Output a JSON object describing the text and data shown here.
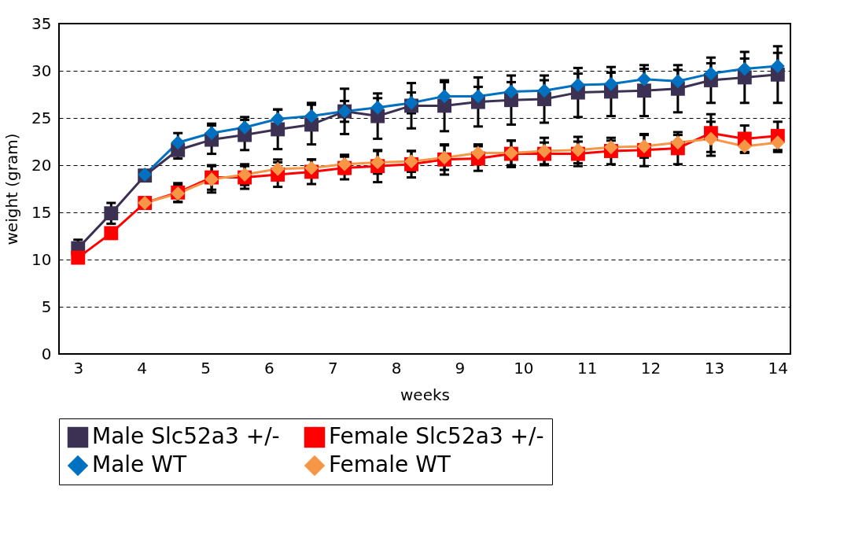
{
  "chart_data": {
    "type": "line",
    "xlabel": "weeks",
    "ylabel": "weight (gram)",
    "x": [
      3,
      3.52,
      4.05,
      4.57,
      5.1,
      5.62,
      6.14,
      6.67,
      7.19,
      7.71,
      8.24,
      8.76,
      9.29,
      9.81,
      10.33,
      10.86,
      11.38,
      11.9,
      12.43,
      12.95,
      13.48,
      14
    ],
    "xlim": [
      2.7,
      14.2
    ],
    "xticks": [
      3,
      4,
      5,
      6,
      7,
      8,
      9,
      10,
      11,
      12,
      13,
      14
    ],
    "ylim": [
      0,
      35
    ],
    "yticks": [
      0,
      5,
      10,
      15,
      20,
      25,
      30,
      35
    ],
    "grid": "y",
    "legend": "bottom",
    "line_style": "solid",
    "series": [
      {
        "name": "Male Slc52a3 +/-",
        "color": "#3c3152",
        "marker": "square",
        "values": [
          11.2,
          14.9,
          18.9,
          21.6,
          22.7,
          23.2,
          23.8,
          24.3,
          25.7,
          25.2,
          26.3,
          26.3,
          26.7,
          26.9,
          27.0,
          27.7,
          27.8,
          27.9,
          28.1,
          29.0,
          29.3,
          29.6
        ],
        "errors": [
          0.9,
          1.1,
          null,
          0.9,
          1.5,
          1.6,
          2.1,
          2.1,
          2.4,
          2.4,
          2.4,
          2.7,
          2.6,
          2.6,
          2.5,
          2.6,
          2.6,
          2.7,
          2.5,
          2.4,
          2.7,
          3.0
        ]
      },
      {
        "name": "Female Slc52a3 +/-",
        "color": "#ff0000",
        "marker": "square",
        "values": [
          10.2,
          12.8,
          16.0,
          17.1,
          18.7,
          18.7,
          19.0,
          19.3,
          19.7,
          19.9,
          20.1,
          20.6,
          20.7,
          21.2,
          21.2,
          21.2,
          21.5,
          21.6,
          21.8,
          23.4,
          22.8,
          23.1
        ],
        "errors": [
          null,
          null,
          null,
          1.0,
          1.3,
          1.2,
          1.3,
          1.3,
          1.2,
          1.7,
          1.4,
          1.6,
          1.3,
          1.4,
          1.2,
          1.3,
          1.4,
          1.7,
          1.7,
          2.0,
          1.4,
          1.5
        ]
      },
      {
        "name": "Male WT",
        "color": "#0070c0",
        "marker": "diamond",
        "values": [
          null,
          null,
          19.0,
          22.4,
          23.4,
          24.0,
          24.9,
          25.2,
          25.7,
          26.1,
          26.6,
          27.3,
          27.3,
          27.8,
          27.9,
          28.5,
          28.6,
          29.1,
          28.9,
          29.7,
          30.2,
          30.5
        ],
        "errors": [
          null,
          null,
          null,
          1.0,
          1.0,
          1.1,
          1.0,
          1.4,
          1.1,
          1.0,
          1.1,
          1.5,
          1.0,
          1.0,
          1.1,
          1.2,
          1.2,
          1.1,
          1.2,
          1.1,
          1.1,
          1.4
        ]
      },
      {
        "name": "Female WT",
        "color": "#f79646",
        "marker": "diamond",
        "values": [
          null,
          null,
          16.0,
          17.0,
          18.5,
          19.0,
          19.6,
          19.7,
          20.1,
          20.3,
          20.4,
          20.8,
          21.3,
          21.3,
          21.5,
          21.6,
          21.9,
          22.0,
          22.4,
          22.8,
          22.0,
          22.4
        ],
        "errors": [
          null,
          null,
          null,
          0.9,
          1.4,
          1.1,
          1.0,
          0.9,
          1.0,
          1.2,
          1.1,
          1.3,
          0.9,
          1.3,
          1.4,
          1.4,
          0.7,
          1.2,
          0.8,
          1.8,
          0.7,
          1.0
        ]
      }
    ]
  }
}
